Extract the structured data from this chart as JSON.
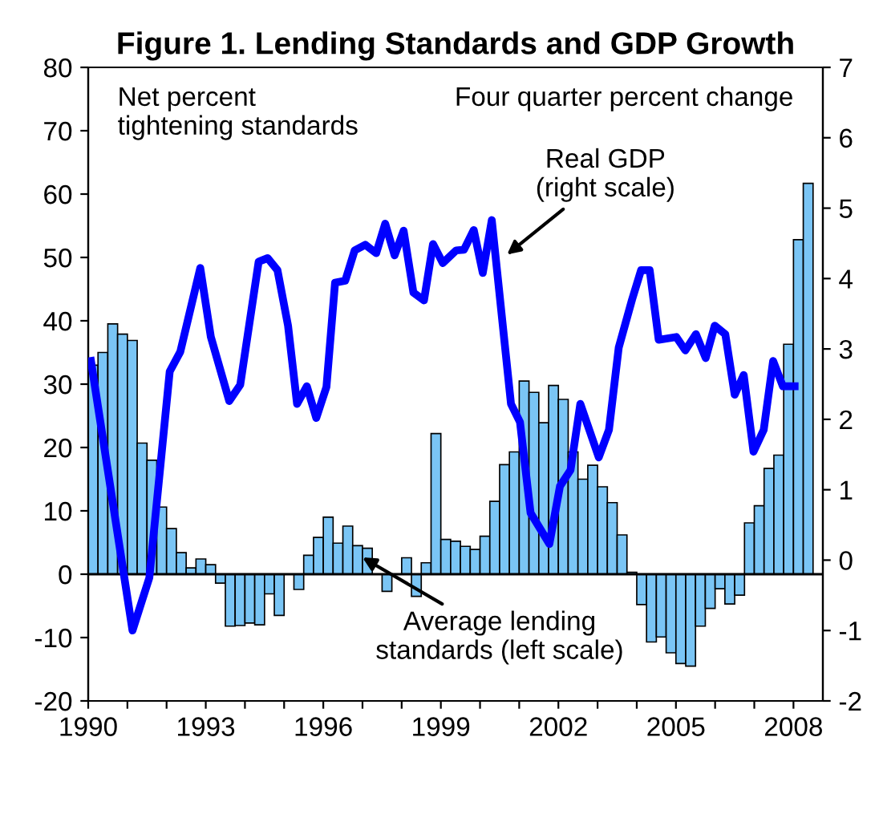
{
  "chart_data": {
    "type": "bar",
    "title": "Figure 1. Lending Standards and GDP Growth",
    "xlim": [
      1990,
      2008.75
    ],
    "xticks": [
      1990,
      {
        "value": 1991,
        "label": null
      },
      {
        "value": 1992,
        "label": null
      },
      1993,
      {
        "value": 1994,
        "label": null
      },
      {
        "value": 1995,
        "label": null
      },
      1996,
      {
        "value": 1997,
        "label": null
      },
      {
        "value": 1998,
        "label": null
      },
      1999,
      {
        "value": 2000,
        "label": null
      },
      {
        "value": 2001,
        "label": null
      },
      2002,
      {
        "value": 2003,
        "label": null
      },
      {
        "value": 2004,
        "label": null
      },
      2005,
      {
        "value": 2006,
        "label": null
      },
      {
        "value": 2007,
        "label": null
      },
      2008
    ],
    "ylim": [
      -20,
      80
    ],
    "yticks": [
      -20,
      -10,
      0,
      10,
      20,
      30,
      40,
      50,
      60,
      70,
      80
    ],
    "y2lim": [
      -2,
      7
    ],
    "y2ticks": [
      -2,
      -1,
      0,
      1,
      2,
      3,
      4,
      5,
      6,
      7
    ],
    "grid": false,
    "legend": false,
    "ref_lines": [
      {
        "axis": "y",
        "value": 0,
        "color": "#000000"
      }
    ],
    "series": [
      {
        "color": "#7ac5f5",
        "x": [
          1990.125,
          1990.375,
          1990.625,
          1990.875,
          1991.125,
          1991.375,
          1991.625,
          1991.875,
          1992.125,
          1992.375,
          1992.625,
          1992.875,
          1993.125,
          1993.375,
          1993.625,
          1993.875,
          1994.125,
          1994.375,
          1994.625,
          1994.875,
          1995.125,
          1995.375,
          1995.625,
          1995.875,
          1996.125,
          1996.375,
          1996.625,
          1996.875,
          1997.125,
          1997.375,
          1997.625,
          1997.875,
          1998.125,
          1998.375,
          1998.625,
          1998.875,
          1999.125,
          1999.375,
          1999.625,
          1999.875,
          2000.125,
          2000.375,
          2000.625,
          2000.875,
          2001.125,
          2001.375,
          2001.625,
          2001.875,
          2002.125,
          2002.375,
          2002.625,
          2002.875,
          2003.125,
          2003.375,
          2003.625,
          2003.875,
          2004.125,
          2004.375,
          2004.625,
          2004.875,
          2005.125,
          2005.375,
          2005.625,
          2005.875,
          2006.125,
          2006.375,
          2006.625,
          2006.875,
          2007.125,
          2007.375,
          2007.625,
          2007.875,
          2008.125,
          2008.375
        ],
        "values": [
          33,
          35,
          39.5,
          37.9,
          36.9,
          20.7,
          18,
          10.6,
          7.2,
          3.4,
          1,
          2.4,
          1.5,
          -1.4,
          -8.2,
          -8.1,
          -7.7,
          -8,
          -3.1,
          -6.5,
          0,
          -2.4,
          3,
          5.8,
          9,
          4.9,
          7.6,
          4.5,
          4.1,
          0,
          -2.7,
          0,
          2.6,
          -3.5,
          1.8,
          22.2,
          5.5,
          5.2,
          4.4,
          3.9,
          6,
          11.5,
          17.3,
          19.3,
          30.5,
          28.7,
          23.9,
          29.8,
          27.6,
          19.3,
          15,
          17.2,
          13.8,
          11.3,
          6.2,
          0.3,
          -4.8,
          -10.7,
          -9.9,
          -12.4,
          -14.1,
          -14.5,
          -8.2,
          -5.4,
          -2.3,
          -4.7,
          -3.3,
          8.1,
          10.8,
          16.7,
          18.8,
          36.3,
          52.8,
          61.7
        ]
      },
      {
        "type": "line",
        "axis": "y2",
        "color": "#0000ff",
        "marker": "none",
        "line_style": "solid",
        "x": [
          1990.07,
          1991.13,
          1991.56,
          1992.08,
          1992.35,
          1992.86,
          1993.13,
          1993.6,
          1993.88,
          1994.35,
          1994.58,
          1994.83,
          1995.1,
          1995.33,
          1995.58,
          1995.82,
          1996.08,
          1996.3,
          1996.56,
          1996.8,
          1997.07,
          1997.35,
          1997.58,
          1997.82,
          1998.05,
          1998.3,
          1998.57,
          1998.8,
          1999.05,
          1999.39,
          1999.59,
          1999.84,
          2000.07,
          2000.3,
          2000.79,
          2001.02,
          2001.29,
          2001.77,
          2002.04,
          2002.31,
          2002.56,
          2003.03,
          2003.29,
          2003.54,
          2003.88,
          2004.11,
          2004.33,
          2004.56,
          2005.01,
          2005.24,
          2005.51,
          2005.76,
          2005.99,
          2006.26,
          2006.5,
          2006.73,
          2006.98,
          2007.24,
          2007.48,
          2007.73,
          2008.03
        ],
        "values": [
          2.83,
          -1.0,
          -0.25,
          2.68,
          2.96,
          4.15,
          3.17,
          2.26,
          2.49,
          4.24,
          4.29,
          4.12,
          3.33,
          2.22,
          2.47,
          2.02,
          2.46,
          3.94,
          3.97,
          4.4,
          4.48,
          4.36,
          4.78,
          4.33,
          4.68,
          3.8,
          3.69,
          4.49,
          4.22,
          4.4,
          4.41,
          4.69,
          4.08,
          4.83,
          2.22,
          1.96,
          0.67,
          0.23,
          1.05,
          1.28,
          2.22,
          1.46,
          1.85,
          3.02,
          3.7,
          4.12,
          4.12,
          3.13,
          3.17,
          2.98,
          3.21,
          2.87,
          3.33,
          3.21,
          2.35,
          2.63,
          1.54,
          1.85,
          2.83,
          2.47,
          2.47
        ]
      }
    ],
    "annotations": [
      "Net percent\ntightening standards",
      "Four quarter percent change",
      {
        "text": "Real GDP\n(right scale)",
        "x": 2000.6,
        "y": 50
      },
      {
        "text": "Average lending\nstandards (left scale)",
        "x": 1996.9,
        "y": 3
      }
    ]
  }
}
